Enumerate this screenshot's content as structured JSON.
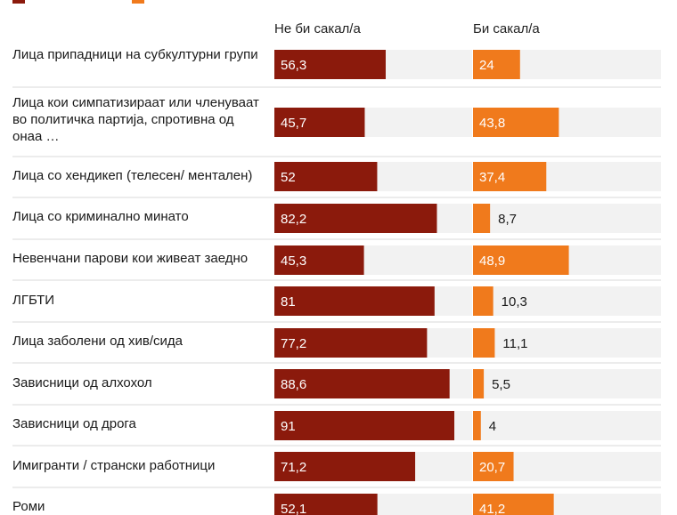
{
  "chart_data": {
    "type": "bar",
    "colors": {
      "series_a": "#8b1a0c",
      "series_b": "#f07a1c",
      "track": "#f2f2f2",
      "divider": "#d8d8d8"
    },
    "xlim": [
      0,
      100
    ],
    "categories": [
      "Лица припадници на субкултурни групи",
      "Лица кои симпатизираат или членуваат во политичка партија, спротивна од онаа …",
      "Лица со хендикеп (телесен/ ментален)",
      "Лица со криминално минато",
      "Невенчани парови кои живеат заедно",
      "ЛГБТИ",
      "Лица заболени од хив/сида",
      "Зависници од алхохол",
      "Зависници од дрога",
      "Имигранти / странски работници",
      "Роми"
    ],
    "series": [
      {
        "name": "Не би сакал/а",
        "values": [
          56.3,
          45.7,
          52,
          82.2,
          45.3,
          81,
          77.2,
          88.6,
          91,
          71.2,
          52.1
        ],
        "labels": [
          "56,3",
          "45,7",
          "52",
          "82,2",
          "45,3",
          "81",
          "77,2",
          "88,6",
          "91",
          "71,2",
          "52,1"
        ]
      },
      {
        "name": "Би сакал/а",
        "values": [
          24,
          43.8,
          37.4,
          8.7,
          48.9,
          10.3,
          11.1,
          5.5,
          4,
          20.7,
          41.2
        ],
        "labels": [
          "24",
          "43,8",
          "37,4",
          "8,7",
          "48,9",
          "10,3",
          "11,1",
          "5,5",
          "4",
          "20,7",
          "41,2"
        ]
      }
    ]
  }
}
